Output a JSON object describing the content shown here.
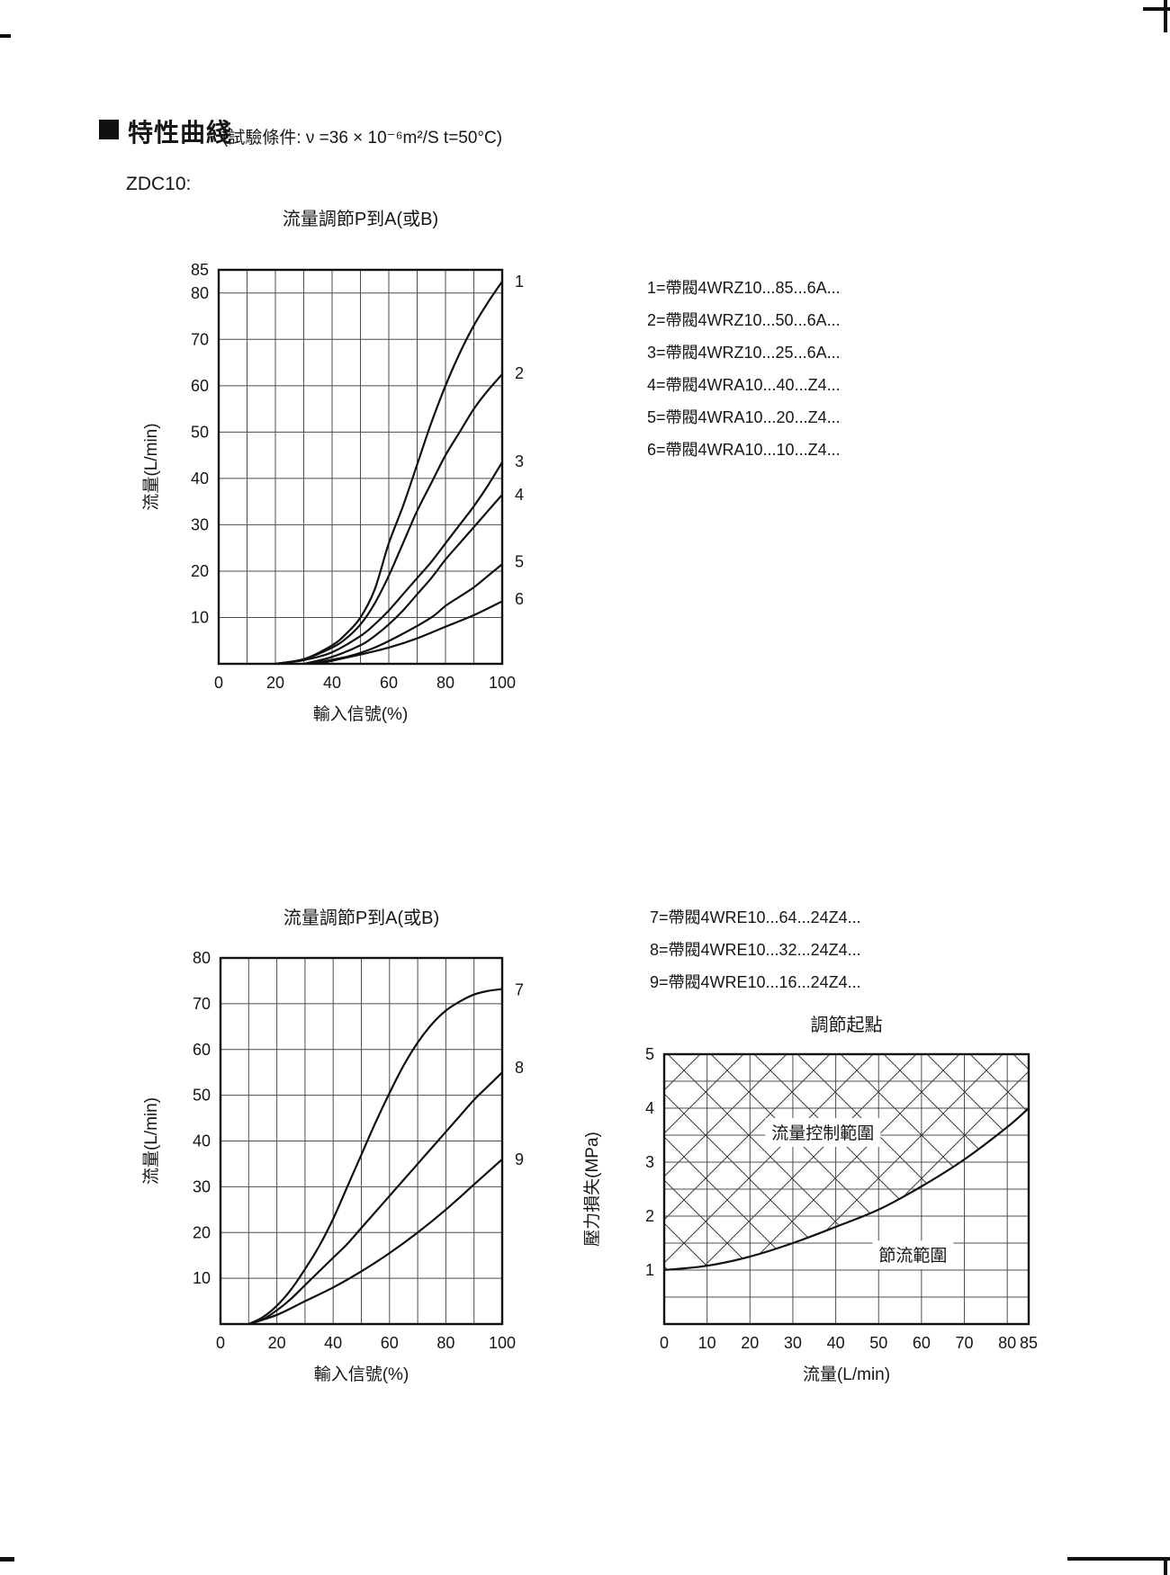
{
  "page": {
    "header": {
      "title": "特性曲綫",
      "condition": "(試驗條件: ν =36 × 10⁻⁶m²/S   t=50°C)",
      "model": "ZDC10:"
    },
    "legend1": {
      "items": [
        "1=帶閥4WRZ10...85...6A...",
        "2=帶閥4WRZ10...50...6A...",
        "3=帶閥4WRZ10...25...6A...",
        "4=帶閥4WRA10...40...Z4...",
        "5=帶閥4WRA10...20...Z4...",
        "6=帶閥4WRA10...10...Z4..."
      ]
    },
    "legend2": {
      "items": [
        "7=帶閥4WRE10...64...24Z4...",
        "8=帶閥4WRE10...32...24Z4...",
        "9=帶閥4WRE10...16...24Z4..."
      ]
    },
    "colors": {
      "ink": "#111111",
      "grid": "#4d4d4d"
    }
  },
  "chart_data": [
    {
      "type": "line",
      "title": "流量調節P到A(或B)",
      "xlabel": "輸入信號(%)",
      "ylabel": "流量(L/min)",
      "x_range": [
        0,
        100
      ],
      "y_range": [
        0,
        85
      ],
      "x_grid_step": 10,
      "y_grid_step": 10,
      "x_ticks": [
        0,
        20,
        40,
        60,
        80,
        100
      ],
      "y_ticks": [
        85,
        80,
        70,
        60,
        50,
        40,
        30,
        20,
        10
      ],
      "grid": true,
      "legend_position": "right-of-plot-curve-end",
      "series": [
        {
          "name": "1",
          "points": [
            [
              20,
              0
            ],
            [
              30,
              1
            ],
            [
              40,
              4
            ],
            [
              45,
              6.5
            ],
            [
              50,
              10
            ],
            [
              55,
              16
            ],
            [
              60,
              26
            ],
            [
              65,
              34
            ],
            [
              70,
              43
            ],
            [
              75,
              52
            ],
            [
              80,
              60
            ],
            [
              85,
              67
            ],
            [
              90,
              73
            ],
            [
              95,
              78
            ],
            [
              100,
              82.5
            ]
          ]
        },
        {
          "name": "2",
          "points": [
            [
              20,
              0
            ],
            [
              30,
              1
            ],
            [
              40,
              3.5
            ],
            [
              45,
              5.5
            ],
            [
              50,
              8.5
            ],
            [
              55,
              13
            ],
            [
              60,
              19
            ],
            [
              65,
              26
            ],
            [
              70,
              33
            ],
            [
              75,
              39
            ],
            [
              80,
              45
            ],
            [
              85,
              50
            ],
            [
              90,
              55
            ],
            [
              95,
              59
            ],
            [
              100,
              62.5
            ]
          ]
        },
        {
          "name": "3",
          "points": [
            [
              20,
              0
            ],
            [
              30,
              0.8
            ],
            [
              40,
              2.5
            ],
            [
              50,
              6
            ],
            [
              55,
              8.5
            ],
            [
              60,
              11.5
            ],
            [
              65,
              15
            ],
            [
              70,
              18.5
            ],
            [
              75,
              22
            ],
            [
              80,
              26
            ],
            [
              85,
              30
            ],
            [
              90,
              34
            ],
            [
              95,
              38.5
            ],
            [
              100,
              43.5
            ]
          ]
        },
        {
          "name": "4",
          "points": [
            [
              30,
              0
            ],
            [
              40,
              1.5
            ],
            [
              50,
              4
            ],
            [
              55,
              6
            ],
            [
              60,
              8.5
            ],
            [
              65,
              11.5
            ],
            [
              70,
              15
            ],
            [
              75,
              18.5
            ],
            [
              80,
              22.5
            ],
            [
              85,
              26
            ],
            [
              90,
              29.5
            ],
            [
              95,
              33
            ],
            [
              100,
              36.5
            ]
          ]
        },
        {
          "name": "5",
          "points": [
            [
              32,
              0
            ],
            [
              45,
              1.5
            ],
            [
              55,
              3.5
            ],
            [
              65,
              6.5
            ],
            [
              75,
              10
            ],
            [
              80,
              12.5
            ],
            [
              85,
              14.5
            ],
            [
              90,
              16.5
            ],
            [
              95,
              19
            ],
            [
              100,
              21.5
            ]
          ]
        },
        {
          "name": "6",
          "points": [
            [
              35,
              0
            ],
            [
              50,
              2
            ],
            [
              60,
              3.5
            ],
            [
              70,
              5.5
            ],
            [
              80,
              8
            ],
            [
              90,
              10.5
            ],
            [
              100,
              13.5
            ]
          ]
        }
      ],
      "curve_labels": [
        {
          "text": "1",
          "value": 82.5
        },
        {
          "text": "2",
          "value": 62.7
        },
        {
          "text": "3",
          "value": 43.7
        },
        {
          "text": "4",
          "value": 36.5
        },
        {
          "text": "5",
          "value": 22
        },
        {
          "text": "6",
          "value": 14
        }
      ]
    },
    {
      "type": "line",
      "title": "流量調節P到A(或B)",
      "xlabel": "輸入信號(%)",
      "ylabel": "流量(L/min)",
      "x_range": [
        0,
        100
      ],
      "y_range": [
        0,
        80
      ],
      "x_grid_step": 10,
      "y_grid_step": 10,
      "x_ticks": [
        0,
        20,
        40,
        60,
        80,
        100
      ],
      "y_ticks": [
        80,
        70,
        60,
        50,
        40,
        30,
        20,
        10
      ],
      "grid": true,
      "series": [
        {
          "name": "7",
          "points": [
            [
              10,
              0
            ],
            [
              15,
              1.5
            ],
            [
              20,
              4
            ],
            [
              25,
              7.5
            ],
            [
              30,
              12
            ],
            [
              35,
              17
            ],
            [
              40,
              23
            ],
            [
              45,
              30
            ],
            [
              50,
              37
            ],
            [
              55,
              44
            ],
            [
              60,
              50.5
            ],
            [
              65,
              56.5
            ],
            [
              70,
              61.5
            ],
            [
              75,
              65.5
            ],
            [
              80,
              68.5
            ],
            [
              85,
              70.5
            ],
            [
              90,
              72
            ],
            [
              95,
              72.8
            ],
            [
              100,
              73.2
            ]
          ]
        },
        {
          "name": "8",
          "points": [
            [
              10,
              0
            ],
            [
              15,
              1
            ],
            [
              20,
              3
            ],
            [
              25,
              5.5
            ],
            [
              30,
              8.5
            ],
            [
              35,
              11.5
            ],
            [
              40,
              14.5
            ],
            [
              45,
              17.5
            ],
            [
              50,
              21
            ],
            [
              55,
              24.5
            ],
            [
              60,
              28
            ],
            [
              65,
              31.5
            ],
            [
              70,
              35
            ],
            [
              75,
              38.5
            ],
            [
              80,
              42
            ],
            [
              85,
              45.5
            ],
            [
              90,
              49
            ],
            [
              95,
              52
            ],
            [
              100,
              55
            ]
          ]
        },
        {
          "name": "9",
          "points": [
            [
              10,
              0
            ],
            [
              20,
              2
            ],
            [
              30,
              5
            ],
            [
              40,
              8
            ],
            [
              50,
              11.5
            ],
            [
              60,
              15.5
            ],
            [
              70,
              20
            ],
            [
              80,
              25
            ],
            [
              90,
              30.5
            ],
            [
              100,
              36
            ]
          ]
        }
      ],
      "curve_labels": [
        {
          "text": "7",
          "value": 73
        },
        {
          "text": "8",
          "value": 56
        },
        {
          "text": "9",
          "value": 36
        }
      ]
    },
    {
      "type": "area",
      "title": "調節起點",
      "xlabel": "流量(L/min)",
      "ylabel": "壓力損失(MPa)",
      "x_range": [
        0,
        85
      ],
      "y_range": [
        0,
        5
      ],
      "x_grid_step": 10,
      "y_grid_step": 0.5,
      "x_ticks": [
        0,
        10,
        20,
        30,
        40,
        50,
        60,
        70,
        80,
        85
      ],
      "y_ticks": [
        5,
        4,
        3,
        2,
        1
      ],
      "grid": true,
      "hatch_region": "above-curve",
      "series": [
        {
          "name": "調節起點邊界",
          "points": [
            [
              0,
              1.0
            ],
            [
              10,
              1.08
            ],
            [
              20,
              1.25
            ],
            [
              30,
              1.5
            ],
            [
              40,
              1.8
            ],
            [
              50,
              2.12
            ],
            [
              60,
              2.55
            ],
            [
              70,
              3.05
            ],
            [
              80,
              3.65
            ],
            [
              85,
              4.0
            ]
          ]
        }
      ],
      "annotations": [
        {
          "text": "流量控制範圍",
          "x": 37,
          "y": 3.55
        },
        {
          "text": "節流範圍",
          "x": 58,
          "y": 1.28
        }
      ]
    }
  ]
}
